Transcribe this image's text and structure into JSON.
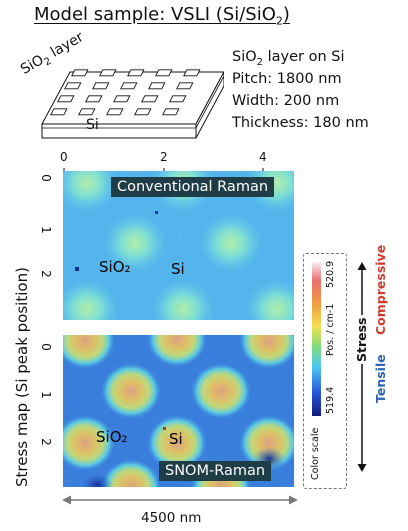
{
  "title": "Model sample: VSLI (Si/SiO",
  "title_sub": "2",
  "title_end": ")",
  "schematic": {
    "layer_label": "SiO",
    "layer_label_sub": "2",
    "layer_label_end": " layer",
    "substrate_label": "Si"
  },
  "specs": {
    "line1_a": "SiO",
    "line1_sub": "2",
    "line1_b": " layer on Si",
    "pitch": "Pitch: 1800 nm",
    "width": "Width: 200 nm",
    "thickness": "Thickness: 180 nm"
  },
  "x_ticks": [
    "0",
    "2",
    "4"
  ],
  "y_ticks": [
    "0",
    "1",
    "2"
  ],
  "y_axis_label": "Stress map (Si peak position)",
  "maps": {
    "top": {
      "label": "Conventional Raman",
      "sio2": "SiO₂",
      "si": "Si"
    },
    "bottom": {
      "label": "SNOM-Raman",
      "sio2": "SiO₂",
      "si": "Si"
    }
  },
  "scale_bar": "4500 nm",
  "color_scale": {
    "title": "Color scale",
    "unit": "Pos. / cm-1",
    "max": "520.9",
    "min": "519.4",
    "stress": "Stress",
    "compressive": "Compressive",
    "tensile": "Tensile",
    "compressive_color": "#d03a2c",
    "tensile_color": "#2d62b5"
  }
}
